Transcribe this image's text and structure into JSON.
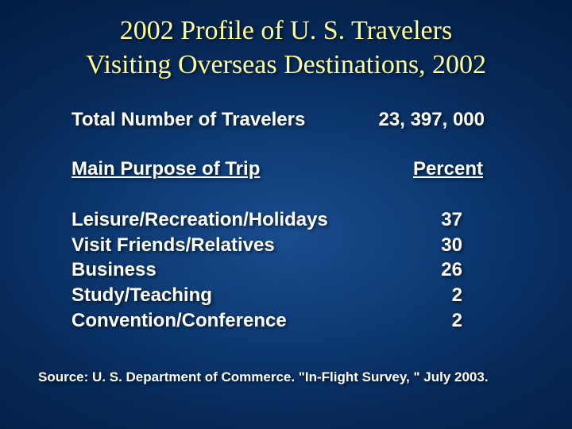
{
  "title": {
    "line1": "2002 Profile of U. S. Travelers",
    "line2": "Visiting Overseas Destinations, 2002",
    "color": "#ffff99",
    "font_family": "Times New Roman",
    "font_size_pt": 26
  },
  "body": {
    "text_color": "#ffffff",
    "font_family": "Arial",
    "font_weight": "bold",
    "font_size_pt": 18
  },
  "background": {
    "type": "radial-gradient",
    "center_color": "#1a4d8f",
    "edge_color": "#041f45"
  },
  "total": {
    "label": "Total Number of Travelers",
    "value": "23, 397, 000"
  },
  "table": {
    "header_label": "Main Purpose of Trip",
    "header_value": "Percent",
    "rows": [
      {
        "label": "Leisure/Recreation/Holidays",
        "value": "37"
      },
      {
        "label": "Visit Friends/Relatives",
        "value": "30"
      },
      {
        "label": "Business",
        "value": "26"
      },
      {
        "label": "Study/Teaching",
        "value": "2"
      },
      {
        "label": "Convention/Conference",
        "value": "2"
      }
    ]
  },
  "source": "Source: U. S. Department of Commerce. \"In-Flight Survey, \" July 2003."
}
